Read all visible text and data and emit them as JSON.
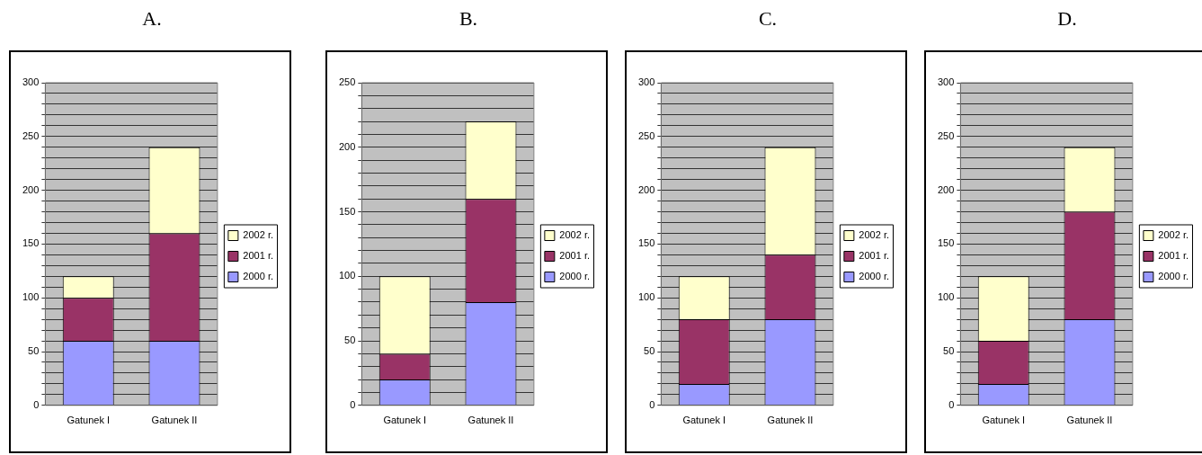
{
  "chart_data": [
    {
      "type": "bar",
      "title": "A.",
      "categories": [
        "Gatunek I",
        "Gatunek II"
      ],
      "stacked": true,
      "grid": "y",
      "legend": "right",
      "ylim": [
        0,
        300
      ],
      "yticks": [
        0,
        {
          "value": 10,
          "label": null
        },
        {
          "value": 20,
          "label": null
        },
        {
          "value": 30,
          "label": null
        },
        {
          "value": 40,
          "label": null
        },
        50,
        {
          "value": 60,
          "label": null
        },
        {
          "value": 70,
          "label": null
        },
        {
          "value": 80,
          "label": null
        },
        {
          "value": 90,
          "label": null
        },
        100,
        {
          "value": 110,
          "label": null
        },
        {
          "value": 120,
          "label": null
        },
        {
          "value": 130,
          "label": null
        },
        {
          "value": 140,
          "label": null
        },
        150,
        {
          "value": 160,
          "label": null
        },
        {
          "value": 170,
          "label": null
        },
        {
          "value": 180,
          "label": null
        },
        {
          "value": 190,
          "label": null
        },
        200,
        {
          "value": 210,
          "label": null
        },
        {
          "value": 220,
          "label": null
        },
        {
          "value": 230,
          "label": null
        },
        {
          "value": 240,
          "label": null
        },
        250,
        {
          "value": 260,
          "label": null
        },
        {
          "value": 270,
          "label": null
        },
        {
          "value": 280,
          "label": null
        },
        {
          "value": 290,
          "label": null
        },
        300
      ],
      "series": [
        {
          "name": "2000 r.",
          "color": "#9999ff",
          "values": [
            60,
            60
          ]
        },
        {
          "name": "2001 r.",
          "color": "#993366",
          "values": [
            40,
            100
          ]
        },
        {
          "name": "2002 r.",
          "color": "#ffffcc",
          "values": [
            20,
            80
          ]
        }
      ]
    },
    {
      "type": "bar",
      "title": "B.",
      "categories": [
        "Gatunek I",
        "Gatunek II"
      ],
      "stacked": true,
      "grid": "y",
      "legend": "right",
      "ylim": [
        0,
        250
      ],
      "yticks": [
        0,
        {
          "value": 10,
          "label": null
        },
        {
          "value": 20,
          "label": null
        },
        {
          "value": 30,
          "label": null
        },
        {
          "value": 40,
          "label": null
        },
        50,
        {
          "value": 60,
          "label": null
        },
        {
          "value": 70,
          "label": null
        },
        {
          "value": 80,
          "label": null
        },
        {
          "value": 90,
          "label": null
        },
        100,
        {
          "value": 110,
          "label": null
        },
        {
          "value": 120,
          "label": null
        },
        {
          "value": 130,
          "label": null
        },
        {
          "value": 140,
          "label": null
        },
        150,
        {
          "value": 160,
          "label": null
        },
        {
          "value": 170,
          "label": null
        },
        {
          "value": 180,
          "label": null
        },
        {
          "value": 190,
          "label": null
        },
        200,
        {
          "value": 210,
          "label": null
        },
        {
          "value": 220,
          "label": null
        },
        {
          "value": 230,
          "label": null
        },
        {
          "value": 240,
          "label": null
        },
        250
      ],
      "series": [
        {
          "name": "2000 r.",
          "color": "#9999ff",
          "values": [
            20,
            80
          ]
        },
        {
          "name": "2001 r.",
          "color": "#993366",
          "values": [
            20,
            80
          ]
        },
        {
          "name": "2002 r.",
          "color": "#ffffcc",
          "values": [
            60,
            60
          ]
        }
      ]
    },
    {
      "type": "bar",
      "title": "C.",
      "categories": [
        "Gatunek I",
        "Gatunek II"
      ],
      "stacked": true,
      "grid": "y",
      "legend": "right",
      "ylim": [
        0,
        300
      ],
      "yticks": [
        0,
        {
          "value": 10,
          "label": null
        },
        {
          "value": 20,
          "label": null
        },
        {
          "value": 30,
          "label": null
        },
        {
          "value": 40,
          "label": null
        },
        50,
        {
          "value": 60,
          "label": null
        },
        {
          "value": 70,
          "label": null
        },
        {
          "value": 80,
          "label": null
        },
        {
          "value": 90,
          "label": null
        },
        100,
        {
          "value": 110,
          "label": null
        },
        {
          "value": 120,
          "label": null
        },
        {
          "value": 130,
          "label": null
        },
        {
          "value": 140,
          "label": null
        },
        150,
        {
          "value": 160,
          "label": null
        },
        {
          "value": 170,
          "label": null
        },
        {
          "value": 180,
          "label": null
        },
        {
          "value": 190,
          "label": null
        },
        200,
        {
          "value": 210,
          "label": null
        },
        {
          "value": 220,
          "label": null
        },
        {
          "value": 230,
          "label": null
        },
        {
          "value": 240,
          "label": null
        },
        250,
        {
          "value": 260,
          "label": null
        },
        {
          "value": 270,
          "label": null
        },
        {
          "value": 280,
          "label": null
        },
        {
          "value": 290,
          "label": null
        },
        300
      ],
      "series": [
        {
          "name": "2000 r.",
          "color": "#9999ff",
          "values": [
            20,
            80
          ]
        },
        {
          "name": "2001 r.",
          "color": "#993366",
          "values": [
            60,
            60
          ]
        },
        {
          "name": "2002 r.",
          "color": "#ffffcc",
          "values": [
            40,
            100
          ]
        }
      ]
    },
    {
      "type": "bar",
      "title": "D.",
      "categories": [
        "Gatunek I",
        "Gatunek II"
      ],
      "stacked": true,
      "grid": "y",
      "legend": "right",
      "ylim": [
        0,
        300
      ],
      "yticks": [
        0,
        {
          "value": 10,
          "label": null
        },
        {
          "value": 20,
          "label": null
        },
        {
          "value": 30,
          "label": null
        },
        {
          "value": 40,
          "label": null
        },
        50,
        {
          "value": 60,
          "label": null
        },
        {
          "value": 70,
          "label": null
        },
        {
          "value": 80,
          "label": null
        },
        {
          "value": 90,
          "label": null
        },
        100,
        {
          "value": 110,
          "label": null
        },
        {
          "value": 120,
          "label": null
        },
        {
          "value": 130,
          "label": null
        },
        {
          "value": 140,
          "label": null
        },
        150,
        {
          "value": 160,
          "label": null
        },
        {
          "value": 170,
          "label": null
        },
        {
          "value": 180,
          "label": null
        },
        {
          "value": 190,
          "label": null
        },
        200,
        {
          "value": 210,
          "label": null
        },
        {
          "value": 220,
          "label": null
        },
        {
          "value": 230,
          "label": null
        },
        {
          "value": 240,
          "label": null
        },
        250,
        {
          "value": 260,
          "label": null
        },
        {
          "value": 270,
          "label": null
        },
        {
          "value": 280,
          "label": null
        },
        {
          "value": 290,
          "label": null
        },
        300
      ],
      "series": [
        {
          "name": "2000 r.",
          "color": "#9999ff",
          "values": [
            20,
            80
          ]
        },
        {
          "name": "2001 r.",
          "color": "#993366",
          "values": [
            40,
            100
          ]
        },
        {
          "name": "2002 r.",
          "color": "#ffffcc",
          "values": [
            60,
            60
          ]
        }
      ]
    }
  ]
}
